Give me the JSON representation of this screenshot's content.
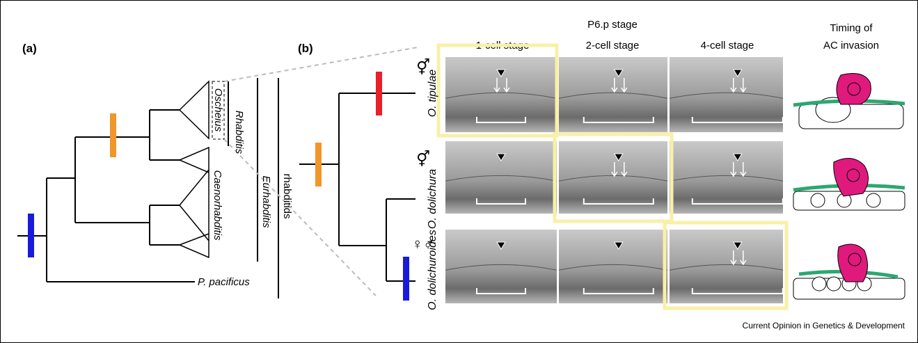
{
  "panels": {
    "a": "(a)",
    "b": "(b)"
  },
  "tree_a": {
    "clades": [
      "Oscheius",
      "Caenorhabditis"
    ],
    "groups": [
      "Rhabditis",
      "Eurhabditis",
      "rhabditids"
    ],
    "outgroup": "P. pacificus"
  },
  "header": {
    "stage": "P6.p stage",
    "columns": [
      "1-cell stage",
      "2-cell stage",
      "4-cell stage"
    ],
    "timing": [
      "Timing of",
      "AC invasion"
    ]
  },
  "species": [
    {
      "name": "O. tipulae",
      "sex": "⚥",
      "color": "#e8202a"
    },
    {
      "name": "O. dolichura",
      "sex": "⚥",
      "color": "#f0962a"
    },
    {
      "name": "O. dolichuroides",
      "sex": "♀♂",
      "color": "#1a1adc"
    }
  ],
  "footer": "Current Opinion in Genetics & Development"
}
